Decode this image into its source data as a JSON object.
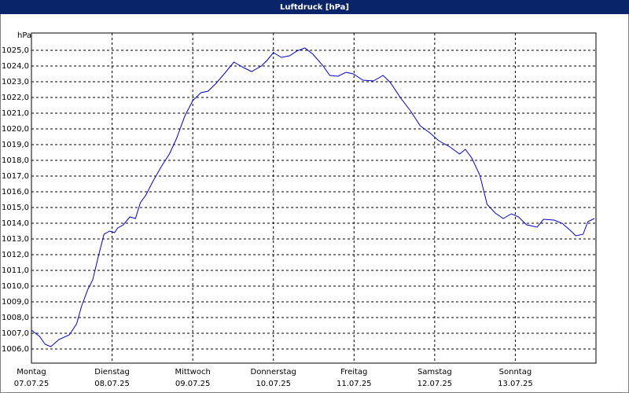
{
  "chart_data": {
    "type": "line",
    "title": "Luftdruck [hPa]",
    "y_label": "hPa",
    "x": [
      0,
      0.1,
      0.17,
      0.24,
      0.34,
      0.47,
      0.56,
      0.62,
      0.7,
      0.76,
      0.83,
      0.9,
      0.97,
      1.03,
      1.07,
      1.14,
      1.22,
      1.29,
      1.35,
      1.42,
      1.51,
      1.61,
      1.71,
      1.8,
      1.9,
      2.0,
      2.1,
      2.19,
      2.29,
      2.39,
      2.51,
      2.63,
      2.73,
      2.85,
      2.92,
      3.0,
      3.1,
      3.2,
      3.29,
      3.39,
      3.49,
      3.61,
      3.7,
      3.8,
      3.9,
      3.99,
      4.11,
      4.24,
      4.36,
      4.45,
      4.58,
      4.7,
      4.82,
      4.94,
      5.05,
      5.19,
      5.31,
      5.38,
      5.46,
      5.56,
      5.65,
      5.75,
      5.85,
      5.95,
      6.04,
      6.14,
      6.27,
      6.35,
      6.48,
      6.58,
      6.68,
      6.75,
      6.84,
      6.9,
      6.98
    ],
    "series": [
      {
        "name": "Luftdruck",
        "color": "#0000c8",
        "values": [
          1007.2,
          1006.8,
          1006.3,
          1006.15,
          1006.6,
          1006.9,
          1007.6,
          1008.7,
          1009.8,
          1010.4,
          1011.9,
          1013.3,
          1013.5,
          1013.4,
          1013.7,
          1013.9,
          1014.4,
          1014.3,
          1015.3,
          1015.8,
          1016.7,
          1017.6,
          1018.4,
          1019.4,
          1020.8,
          1021.8,
          1022.3,
          1022.4,
          1022.9,
          1023.5,
          1024.25,
          1023.9,
          1023.65,
          1024.0,
          1024.35,
          1024.85,
          1024.55,
          1024.65,
          1024.95,
          1025.15,
          1024.75,
          1024.05,
          1023.4,
          1023.35,
          1023.6,
          1023.5,
          1023.1,
          1023.05,
          1023.4,
          1022.95,
          1021.95,
          1021.15,
          1020.2,
          1019.75,
          1019.25,
          1018.85,
          1018.4,
          1018.7,
          1018.15,
          1017.05,
          1015.2,
          1014.65,
          1014.3,
          1014.6,
          1014.4,
          1013.9,
          1013.75,
          1014.25,
          1014.2,
          1014.0,
          1013.55,
          1013.2,
          1013.3,
          1014.1,
          1014.3
        ]
      }
    ],
    "xlim": [
      0,
      7
    ],
    "xticks": [
      {
        "value": 0,
        "label": [
          "Montag",
          "07.07.25"
        ]
      },
      {
        "value": 1,
        "label": [
          "Dienstag",
          "08.07.25"
        ]
      },
      {
        "value": 2,
        "label": [
          "Mittwoch",
          "09.07.25"
        ]
      },
      {
        "value": 3,
        "label": [
          "Donnerstag",
          "10.07.25"
        ]
      },
      {
        "value": 4,
        "label": [
          "Freitag",
          "11.07.25"
        ]
      },
      {
        "value": 5,
        "label": [
          "Samstag",
          "12.07.25"
        ]
      },
      {
        "value": 6,
        "label": [
          "Sonntag",
          "13.07.25"
        ]
      }
    ],
    "ylim": [
      1005.1,
      1026.1
    ],
    "yticks": [
      {
        "value": 1006,
        "label": "1006,0"
      },
      {
        "value": 1007,
        "label": "1007,0"
      },
      {
        "value": 1008,
        "label": "1008,0"
      },
      {
        "value": 1009,
        "label": "1009,0"
      },
      {
        "value": 1010,
        "label": "1010,0"
      },
      {
        "value": 1011,
        "label": "1011,0"
      },
      {
        "value": 1012,
        "label": "1012,0"
      },
      {
        "value": 1013,
        "label": "1013,0"
      },
      {
        "value": 1014,
        "label": "1014,0"
      },
      {
        "value": 1015,
        "label": "1015,0"
      },
      {
        "value": 1016,
        "label": "1016,0"
      },
      {
        "value": 1017,
        "label": "1017,0"
      },
      {
        "value": 1018,
        "label": "1018,0"
      },
      {
        "value": 1019,
        "label": "1019,0"
      },
      {
        "value": 1020,
        "label": "1020,0"
      },
      {
        "value": 1021,
        "label": "1021,0"
      },
      {
        "value": 1022,
        "label": "1022,0"
      },
      {
        "value": 1023,
        "label": "1023,0"
      },
      {
        "value": 1024,
        "label": "1024,0"
      },
      {
        "value": 1025,
        "label": "1025,0"
      }
    ],
    "grid": true
  }
}
